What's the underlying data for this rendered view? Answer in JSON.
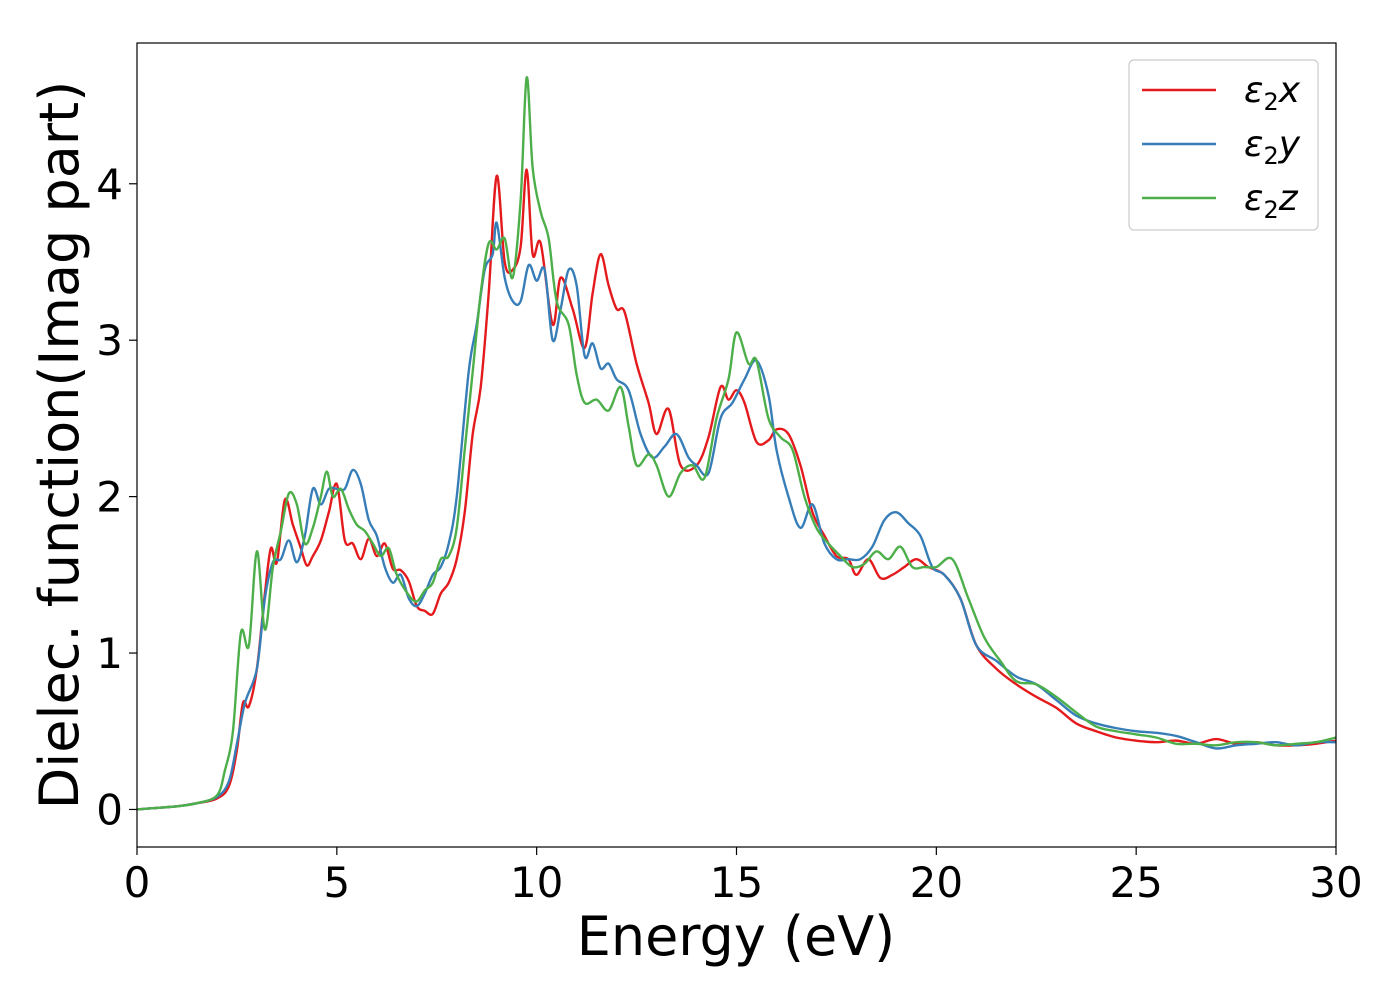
{
  "chart_data": {
    "type": "line",
    "title": "",
    "xlabel": "Energy (eV)",
    "ylabel": "Dielec. function(Imag part)",
    "xlim": [
      0,
      30
    ],
    "ylim": [
      -0.24,
      4.9
    ],
    "xticks": [
      0,
      5,
      10,
      15,
      20,
      25,
      30
    ],
    "yticks": [
      0,
      1,
      2,
      3,
      4
    ],
    "grid": false,
    "legend_position": "top-right",
    "series": [
      {
        "name": "ε2x",
        "legend": {
          "symbol": "ε",
          "sub": "2",
          "suffix": "x"
        },
        "color": "#e41a1c",
        "points": [
          [
            0,
            0
          ],
          [
            0.5,
            0.01
          ],
          [
            1.0,
            0.02
          ],
          [
            1.5,
            0.04
          ],
          [
            2.0,
            0.07
          ],
          [
            2.3,
            0.15
          ],
          [
            2.5,
            0.38
          ],
          [
            2.65,
            0.68
          ],
          [
            2.8,
            0.66
          ],
          [
            3.0,
            0.9
          ],
          [
            3.2,
            1.38
          ],
          [
            3.35,
            1.67
          ],
          [
            3.5,
            1.58
          ],
          [
            3.7,
            1.98
          ],
          [
            3.9,
            1.82
          ],
          [
            4.1,
            1.67
          ],
          [
            4.25,
            1.56
          ],
          [
            4.4,
            1.62
          ],
          [
            4.6,
            1.72
          ],
          [
            4.8,
            1.9
          ],
          [
            5.0,
            2.08
          ],
          [
            5.2,
            1.72
          ],
          [
            5.4,
            1.7
          ],
          [
            5.6,
            1.6
          ],
          [
            5.8,
            1.73
          ],
          [
            6.0,
            1.62
          ],
          [
            6.2,
            1.7
          ],
          [
            6.4,
            1.54
          ],
          [
            6.6,
            1.53
          ],
          [
            6.8,
            1.46
          ],
          [
            7.0,
            1.3
          ],
          [
            7.2,
            1.27
          ],
          [
            7.4,
            1.25
          ],
          [
            7.6,
            1.38
          ],
          [
            7.8,
            1.45
          ],
          [
            8.0,
            1.6
          ],
          [
            8.2,
            1.9
          ],
          [
            8.4,
            2.4
          ],
          [
            8.6,
            2.7
          ],
          [
            8.8,
            3.3
          ],
          [
            9.0,
            4.05
          ],
          [
            9.2,
            3.5
          ],
          [
            9.4,
            3.45
          ],
          [
            9.6,
            3.6
          ],
          [
            9.75,
            4.09
          ],
          [
            9.9,
            3.55
          ],
          [
            10.1,
            3.62
          ],
          [
            10.4,
            3.1
          ],
          [
            10.6,
            3.4
          ],
          [
            10.9,
            3.2
          ],
          [
            11.2,
            2.95
          ],
          [
            11.4,
            3.3
          ],
          [
            11.6,
            3.55
          ],
          [
            11.8,
            3.35
          ],
          [
            12.0,
            3.2
          ],
          [
            12.2,
            3.18
          ],
          [
            12.5,
            2.85
          ],
          [
            12.8,
            2.6
          ],
          [
            13.0,
            2.4
          ],
          [
            13.3,
            2.56
          ],
          [
            13.6,
            2.2
          ],
          [
            14.0,
            2.2
          ],
          [
            14.3,
            2.38
          ],
          [
            14.6,
            2.7
          ],
          [
            14.8,
            2.62
          ],
          [
            15.0,
            2.68
          ],
          [
            15.2,
            2.6
          ],
          [
            15.5,
            2.35
          ],
          [
            15.8,
            2.36
          ],
          [
            16.0,
            2.43
          ],
          [
            16.3,
            2.4
          ],
          [
            16.6,
            2.2
          ],
          [
            16.9,
            1.9
          ],
          [
            17.2,
            1.75
          ],
          [
            17.5,
            1.62
          ],
          [
            17.8,
            1.6
          ],
          [
            18.0,
            1.5
          ],
          [
            18.3,
            1.6
          ],
          [
            18.6,
            1.48
          ],
          [
            18.9,
            1.5
          ],
          [
            19.2,
            1.55
          ],
          [
            19.5,
            1.6
          ],
          [
            19.8,
            1.55
          ],
          [
            20.2,
            1.5
          ],
          [
            20.6,
            1.35
          ],
          [
            21.0,
            1.05
          ],
          [
            21.5,
            0.9
          ],
          [
            22.0,
            0.8
          ],
          [
            22.5,
            0.72
          ],
          [
            23.0,
            0.65
          ],
          [
            23.5,
            0.55
          ],
          [
            24.0,
            0.5
          ],
          [
            24.5,
            0.46
          ],
          [
            25.0,
            0.44
          ],
          [
            25.5,
            0.43
          ],
          [
            26.0,
            0.44
          ],
          [
            26.5,
            0.42
          ],
          [
            27.0,
            0.45
          ],
          [
            27.5,
            0.42
          ],
          [
            28.0,
            0.43
          ],
          [
            28.5,
            0.41
          ],
          [
            29.0,
            0.41
          ],
          [
            29.5,
            0.42
          ],
          [
            30.0,
            0.44
          ]
        ]
      },
      {
        "name": "ε2y",
        "legend": {
          "symbol": "ε",
          "sub": "2",
          "suffix": "y"
        },
        "color": "#377eb8",
        "points": [
          [
            0,
            0
          ],
          [
            0.5,
            0.01
          ],
          [
            1.0,
            0.02
          ],
          [
            1.5,
            0.04
          ],
          [
            2.0,
            0.08
          ],
          [
            2.3,
            0.18
          ],
          [
            2.5,
            0.42
          ],
          [
            2.7,
            0.68
          ],
          [
            3.0,
            0.9
          ],
          [
            3.2,
            1.35
          ],
          [
            3.4,
            1.58
          ],
          [
            3.6,
            1.6
          ],
          [
            3.8,
            1.72
          ],
          [
            4.0,
            1.58
          ],
          [
            4.2,
            1.75
          ],
          [
            4.4,
            2.05
          ],
          [
            4.6,
            1.95
          ],
          [
            4.8,
            2.05
          ],
          [
            5.0,
            2.05
          ],
          [
            5.2,
            2.05
          ],
          [
            5.4,
            2.17
          ],
          [
            5.6,
            2.08
          ],
          [
            5.8,
            1.85
          ],
          [
            6.0,
            1.75
          ],
          [
            6.2,
            1.55
          ],
          [
            6.4,
            1.45
          ],
          [
            6.6,
            1.5
          ],
          [
            6.8,
            1.35
          ],
          [
            7.0,
            1.3
          ],
          [
            7.2,
            1.38
          ],
          [
            7.4,
            1.5
          ],
          [
            7.6,
            1.55
          ],
          [
            7.8,
            1.7
          ],
          [
            8.0,
            2.0
          ],
          [
            8.3,
            2.8
          ],
          [
            8.5,
            3.1
          ],
          [
            8.7,
            3.45
          ],
          [
            8.9,
            3.55
          ],
          [
            9.0,
            3.75
          ],
          [
            9.2,
            3.4
          ],
          [
            9.4,
            3.25
          ],
          [
            9.6,
            3.25
          ],
          [
            9.8,
            3.48
          ],
          [
            10.0,
            3.38
          ],
          [
            10.2,
            3.45
          ],
          [
            10.4,
            3.0
          ],
          [
            10.6,
            3.2
          ],
          [
            10.8,
            3.45
          ],
          [
            11.0,
            3.35
          ],
          [
            11.2,
            2.9
          ],
          [
            11.4,
            2.98
          ],
          [
            11.6,
            2.82
          ],
          [
            11.8,
            2.85
          ],
          [
            12.0,
            2.75
          ],
          [
            12.3,
            2.68
          ],
          [
            12.6,
            2.4
          ],
          [
            12.9,
            2.25
          ],
          [
            13.2,
            2.32
          ],
          [
            13.5,
            2.4
          ],
          [
            13.8,
            2.25
          ],
          [
            14.0,
            2.2
          ],
          [
            14.3,
            2.15
          ],
          [
            14.6,
            2.5
          ],
          [
            14.9,
            2.6
          ],
          [
            15.2,
            2.75
          ],
          [
            15.5,
            2.87
          ],
          [
            15.8,
            2.65
          ],
          [
            16.0,
            2.3
          ],
          [
            16.3,
            2.0
          ],
          [
            16.6,
            1.8
          ],
          [
            16.9,
            1.95
          ],
          [
            17.2,
            1.7
          ],
          [
            17.5,
            1.6
          ],
          [
            17.8,
            1.6
          ],
          [
            18.1,
            1.6
          ],
          [
            18.4,
            1.68
          ],
          [
            18.7,
            1.85
          ],
          [
            19.0,
            1.9
          ],
          [
            19.3,
            1.83
          ],
          [
            19.6,
            1.75
          ],
          [
            19.9,
            1.55
          ],
          [
            20.2,
            1.5
          ],
          [
            20.6,
            1.35
          ],
          [
            21.0,
            1.05
          ],
          [
            21.5,
            0.95
          ],
          [
            22.0,
            0.85
          ],
          [
            22.5,
            0.8
          ],
          [
            23.0,
            0.7
          ],
          [
            23.5,
            0.6
          ],
          [
            24.0,
            0.55
          ],
          [
            24.5,
            0.52
          ],
          [
            25.0,
            0.5
          ],
          [
            25.5,
            0.49
          ],
          [
            26.0,
            0.47
          ],
          [
            26.5,
            0.43
          ],
          [
            27.0,
            0.39
          ],
          [
            27.5,
            0.41
          ],
          [
            28.0,
            0.42
          ],
          [
            28.5,
            0.43
          ],
          [
            29.0,
            0.41
          ],
          [
            29.5,
            0.43
          ],
          [
            30.0,
            0.43
          ]
        ]
      },
      {
        "name": "ε2z",
        "legend": {
          "symbol": "ε",
          "sub": "2",
          "suffix": "z"
        },
        "color": "#4daf4a",
        "points": [
          [
            0,
            0
          ],
          [
            0.5,
            0.01
          ],
          [
            1.0,
            0.02
          ],
          [
            1.5,
            0.04
          ],
          [
            2.0,
            0.09
          ],
          [
            2.2,
            0.25
          ],
          [
            2.4,
            0.5
          ],
          [
            2.6,
            1.13
          ],
          [
            2.8,
            1.05
          ],
          [
            3.0,
            1.65
          ],
          [
            3.2,
            1.15
          ],
          [
            3.4,
            1.55
          ],
          [
            3.6,
            1.78
          ],
          [
            3.8,
            2.02
          ],
          [
            4.0,
            1.95
          ],
          [
            4.2,
            1.7
          ],
          [
            4.4,
            1.8
          ],
          [
            4.6,
            2.0
          ],
          [
            4.75,
            2.16
          ],
          [
            4.9,
            2.0
          ],
          [
            5.1,
            2.05
          ],
          [
            5.3,
            1.92
          ],
          [
            5.5,
            1.82
          ],
          [
            5.7,
            1.78
          ],
          [
            5.9,
            1.7
          ],
          [
            6.1,
            1.62
          ],
          [
            6.3,
            1.67
          ],
          [
            6.5,
            1.5
          ],
          [
            6.8,
            1.37
          ],
          [
            7.0,
            1.33
          ],
          [
            7.2,
            1.4
          ],
          [
            7.4,
            1.45
          ],
          [
            7.6,
            1.6
          ],
          [
            7.8,
            1.62
          ],
          [
            8.0,
            1.8
          ],
          [
            8.2,
            2.3
          ],
          [
            8.4,
            2.8
          ],
          [
            8.6,
            3.3
          ],
          [
            8.8,
            3.62
          ],
          [
            9.0,
            3.58
          ],
          [
            9.2,
            3.65
          ],
          [
            9.4,
            3.4
          ],
          [
            9.6,
            3.9
          ],
          [
            9.75,
            4.68
          ],
          [
            9.9,
            4.1
          ],
          [
            10.1,
            3.82
          ],
          [
            10.3,
            3.65
          ],
          [
            10.5,
            3.25
          ],
          [
            10.8,
            3.1
          ],
          [
            11.0,
            2.78
          ],
          [
            11.2,
            2.6
          ],
          [
            11.5,
            2.62
          ],
          [
            11.8,
            2.55
          ],
          [
            12.1,
            2.7
          ],
          [
            12.3,
            2.45
          ],
          [
            12.5,
            2.2
          ],
          [
            12.8,
            2.27
          ],
          [
            13.0,
            2.2
          ],
          [
            13.3,
            2.0
          ],
          [
            13.6,
            2.15
          ],
          [
            13.9,
            2.2
          ],
          [
            14.2,
            2.12
          ],
          [
            14.5,
            2.5
          ],
          [
            14.8,
            2.75
          ],
          [
            15.0,
            3.05
          ],
          [
            15.3,
            2.85
          ],
          [
            15.5,
            2.87
          ],
          [
            15.8,
            2.5
          ],
          [
            16.1,
            2.38
          ],
          [
            16.4,
            2.3
          ],
          [
            16.7,
            2.0
          ],
          [
            17.0,
            1.8
          ],
          [
            17.3,
            1.7
          ],
          [
            17.6,
            1.62
          ],
          [
            17.9,
            1.55
          ],
          [
            18.2,
            1.57
          ],
          [
            18.5,
            1.65
          ],
          [
            18.8,
            1.6
          ],
          [
            19.1,
            1.68
          ],
          [
            19.4,
            1.55
          ],
          [
            19.7,
            1.55
          ],
          [
            20.0,
            1.55
          ],
          [
            20.4,
            1.6
          ],
          [
            20.8,
            1.35
          ],
          [
            21.2,
            1.1
          ],
          [
            21.6,
            0.95
          ],
          [
            22.0,
            0.82
          ],
          [
            22.5,
            0.8
          ],
          [
            23.0,
            0.72
          ],
          [
            23.5,
            0.62
          ],
          [
            24.0,
            0.53
          ],
          [
            24.5,
            0.5
          ],
          [
            25.0,
            0.48
          ],
          [
            25.5,
            0.46
          ],
          [
            26.0,
            0.42
          ],
          [
            26.5,
            0.42
          ],
          [
            27.0,
            0.41
          ],
          [
            27.5,
            0.43
          ],
          [
            28.0,
            0.43
          ],
          [
            28.5,
            0.41
          ],
          [
            29.0,
            0.42
          ],
          [
            29.5,
            0.43
          ],
          [
            30.0,
            0.46
          ]
        ]
      }
    ]
  }
}
